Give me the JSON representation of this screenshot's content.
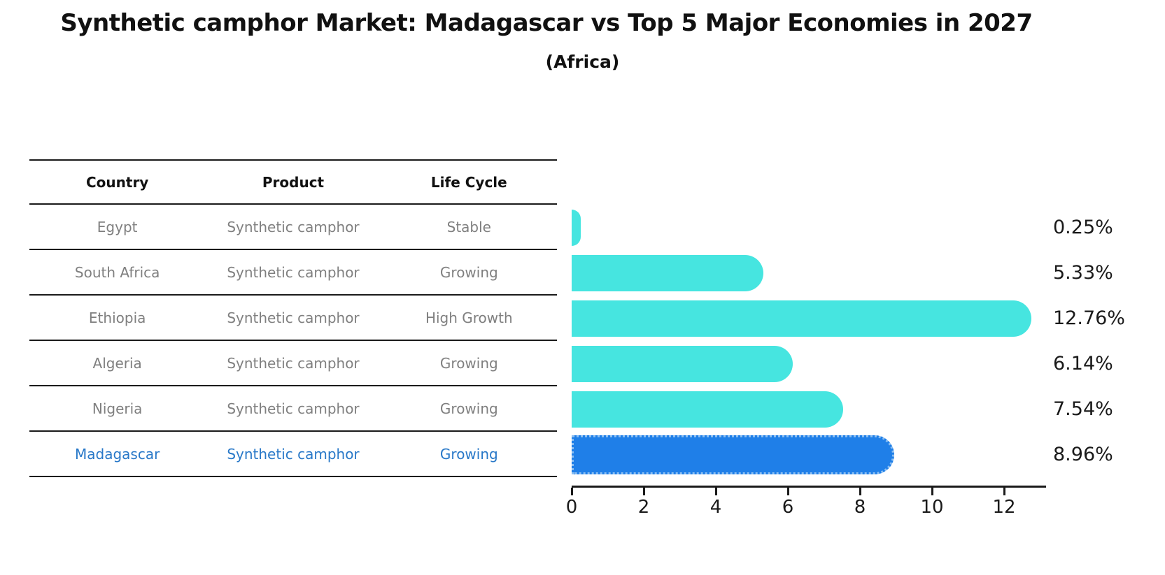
{
  "title": "Synthetic camphor Market: Madagascar vs Top 5 Major Economies in 2027",
  "subtitle": "(Africa)",
  "table": {
    "headers": [
      "Country",
      "Product",
      "Life Cycle"
    ],
    "rows": [
      {
        "country": "Egypt",
        "product": "Synthetic camphor",
        "life_cycle": "Stable",
        "highlight": false
      },
      {
        "country": "South Africa",
        "product": "Synthetic camphor",
        "life_cycle": "Growing",
        "highlight": false
      },
      {
        "country": "Ethiopia",
        "product": "Synthetic camphor",
        "life_cycle": "High Growth",
        "highlight": false
      },
      {
        "country": "Algeria",
        "product": "Synthetic camphor",
        "life_cycle": "Growing",
        "highlight": false
      },
      {
        "country": "Nigeria",
        "product": "Synthetic camphor",
        "life_cycle": "Growing",
        "highlight": false
      },
      {
        "country": "Madagascar",
        "product": "Synthetic camphor",
        "life_cycle": "Growing",
        "highlight": true
      }
    ]
  },
  "chart_data": {
    "type": "bar",
    "orientation": "horizontal",
    "title": "Synthetic camphor Market: Madagascar vs Top 5 Major Economies in 2027",
    "subtitle": "(Africa)",
    "categories": [
      "Egypt",
      "South Africa",
      "Ethiopia",
      "Algeria",
      "Nigeria",
      "Madagascar"
    ],
    "values": [
      0.25,
      5.33,
      12.76,
      6.14,
      7.54,
      8.96
    ],
    "value_labels": [
      "0.25%",
      "5.33%",
      "12.76%",
      "6.14%",
      "7.54%",
      "8.96%"
    ],
    "xlabel": "",
    "ylabel": "",
    "xticks": [
      0,
      2,
      4,
      6,
      8,
      10,
      12
    ],
    "xlim": [
      0,
      13.4
    ],
    "grid": false,
    "legend": false,
    "bar_color": "#46e5e0",
    "highlight_color": "#1f7fe8",
    "highlight_index": 5
  },
  "colors": {
    "background": "#ffffff",
    "header_text": "#111111",
    "row_text": "#7f7f7f",
    "highlight_text": "#2878c8",
    "line": "#1a1a1a",
    "axis": "#1a1a1a",
    "value_label_text": "#1a1a1a"
  }
}
